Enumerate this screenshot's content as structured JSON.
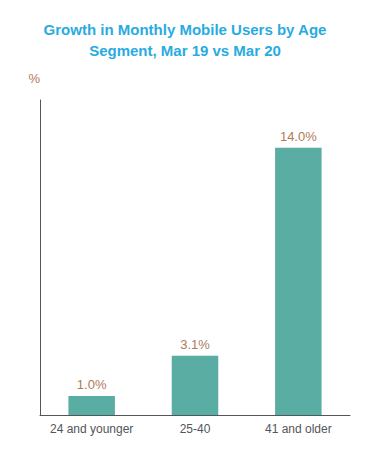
{
  "chart_data": {
    "type": "bar",
    "title": "Growth in Monthly Mobile Users by Age\nSegment, Mar 19 vs Mar 20",
    "ylabel": "%",
    "categories": [
      "24 and younger",
      "25-40",
      "41 and older"
    ],
    "values": [
      1.0,
      3.1,
      14.0
    ],
    "value_labels": [
      "1.0%",
      "3.1%",
      "14.0%"
    ],
    "data_labels": true,
    "color": "#5aada3",
    "ylim": [
      0,
      16.5
    ],
    "grid": false,
    "tick_labels": "x"
  }
}
